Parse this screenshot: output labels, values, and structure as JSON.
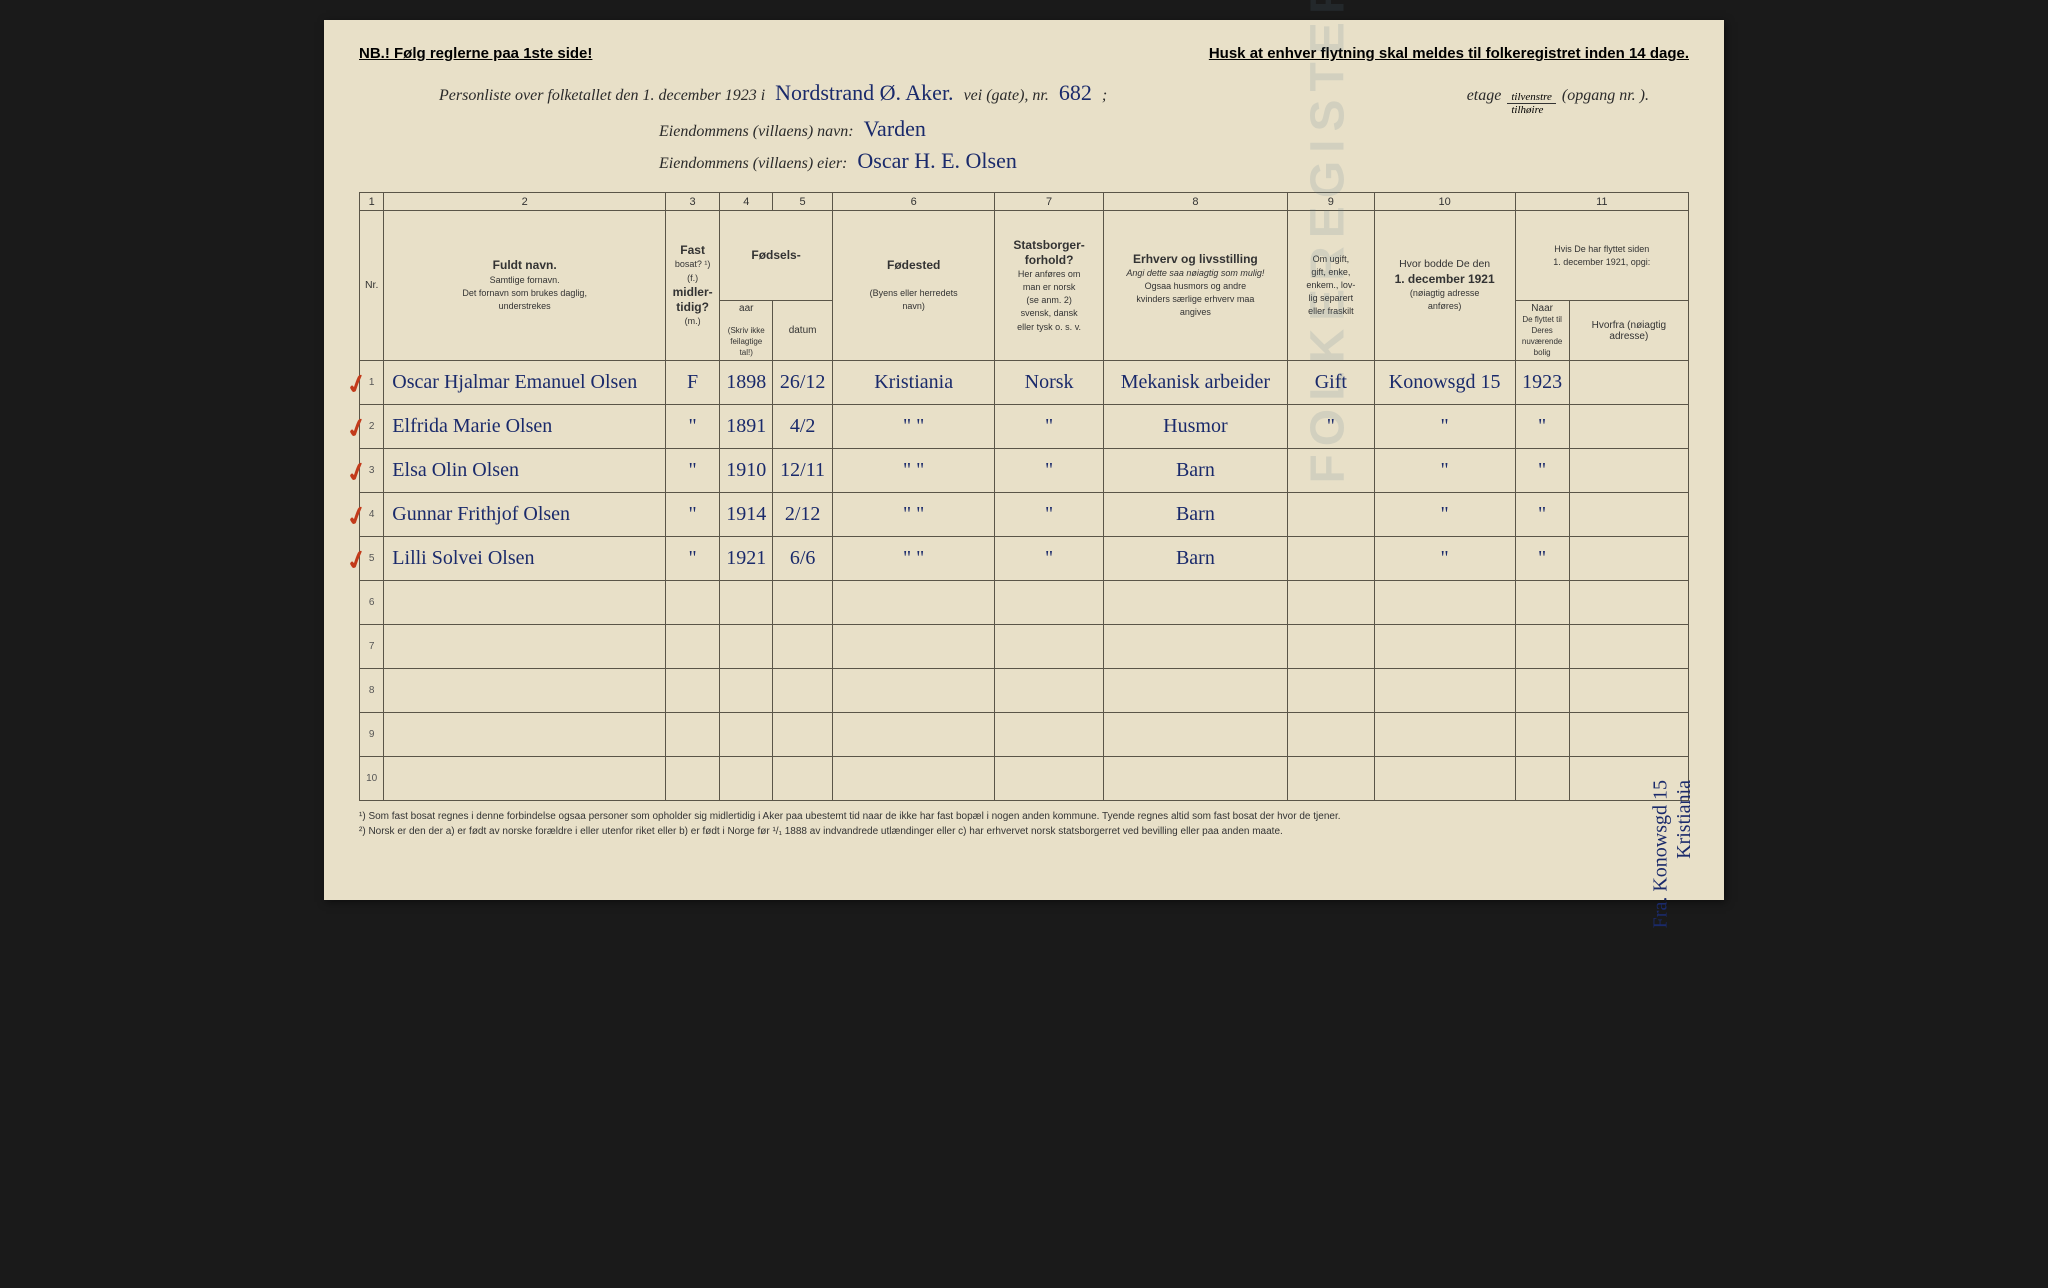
{
  "topLeft": "NB.! Følg reglerne paa 1ste side!",
  "topRight": "Husk at enhver flytning skal meldes til folkeregistret inden 14 dage.",
  "header": {
    "line1_pre": "Personliste over folketallet den 1. december 1923 i",
    "place": "Nordstrand Ø. Aker.",
    "line1_mid": "vei (gate), nr.",
    "gateNr": "682",
    "line1_sep": ";",
    "etage": "etage",
    "tilvenstre": "tilvenstre",
    "tilhoire": "tilhøire",
    "opgang": "(opgang nr.        ).",
    "line2_label": "Eiendommens (villaens) navn:",
    "villa_name": "Varden",
    "line3_label": "Eiendommens (villaens) eier:",
    "owner": "Oscar H. E. Olsen"
  },
  "colNums": [
    "1",
    "2",
    "3",
    "4",
    "5",
    "6",
    "7",
    "8",
    "9",
    "10",
    "11"
  ],
  "headers": {
    "nr": "Nr.",
    "fuldt": "Fuldt navn.",
    "fuldt_sub": "Samtlige fornavn.\nDet fornavn som brukes daglig,\nunderstrekes",
    "fast_top": "Fast",
    "fast_sub1": "bosat? ¹)",
    "fast_sub2": "(f.)",
    "fast_mid": "midler-\ntidig?",
    "fast_sub3": "(m.)",
    "fodsels": "Fødsels-",
    "aar": "aar",
    "datum": "datum",
    "skriv": "(Skriv ikke feilagtige\ntal!)",
    "fodested": "Fødested",
    "fodested_sub": "(Byens eller herredets\nnavn)",
    "stats": "Statsborger-\nforhold?",
    "stats_sub": "Her anføres om\nman er norsk\n(se anm. 2)\nsvensk, dansk\neller tysk o. s. v.",
    "erhverv": "Erhverv og livsstilling",
    "erhverv_em": "Angi dette saa nøiagtig\nsom mulig!",
    "erhverv_sub": "Ogsaa husmors og andre\nkvinders særlige erhverv maa\nangives",
    "ugift": "Om ugift,\ngift, enke,\nenkem., lov-\nlig separert\neller fraskilt",
    "bodde": "Hvor bodde De den",
    "bodde_date": "1. december 1921",
    "bodde_sub": "(nøiagtig adresse\nanføres)",
    "flyttet": "Hvis De har flyttet siden\n1. december 1921, opgi:",
    "naar": "Naar",
    "hvorfra": "Hvorfra (nøiagtig\nadresse)",
    "flyttet_sub": "De flyttet til Deres nuværende\nbolig"
  },
  "rows": [
    {
      "n": "1",
      "name": "Oscar Hjalmar Emanuel Olsen",
      "fast": "F",
      "aar": "1898",
      "datum": "26/12",
      "sted": "Kristiania",
      "stats": "Norsk",
      "erhv": "Mekanisk arbeider",
      "gift": "Gift",
      "addr": "Konowsgd 15",
      "naar": "1923",
      "hvorfra": ""
    },
    {
      "n": "2",
      "name": "Elfrida Marie        Olsen",
      "fast": "\"",
      "aar": "1891",
      "datum": "4/2",
      "sted": "\"   \"",
      "stats": "\"",
      "erhv": "Husmor",
      "gift": "\"",
      "addr": "\"",
      "naar": "\"",
      "hvorfra": ""
    },
    {
      "n": "3",
      "name": "Elsa Olin            Olsen",
      "fast": "\"",
      "aar": "1910",
      "datum": "12/11",
      "sted": "\"   \"",
      "stats": "\"",
      "erhv": "Barn",
      "gift": "",
      "addr": "\"",
      "naar": "\"",
      "hvorfra": ""
    },
    {
      "n": "4",
      "name": "Gunnar Frithjof     Olsen",
      "fast": "\"",
      "aar": "1914",
      "datum": "2/12",
      "sted": "\"   \"",
      "stats": "\"",
      "erhv": "Barn",
      "gift": "",
      "addr": "\"",
      "naar": "\"",
      "hvorfra": ""
    },
    {
      "n": "5",
      "name": "Lilli Solvei         Olsen",
      "fast": "\"",
      "aar": "1921",
      "datum": "6/6",
      "sted": "\"   \"",
      "stats": "\"",
      "erhv": "Barn",
      "gift": "",
      "addr": "\"",
      "naar": "\"",
      "hvorfra": ""
    }
  ],
  "emptyRows": [
    "6",
    "7",
    "8",
    "9",
    "10"
  ],
  "footnotes": {
    "f1": "¹) Som fast bosat regnes i denne forbindelse ogsaa personer som opholder sig midlertidig i Aker paa ubestemt tid naar de ikke har fast bopæl i nogen anden kommune. Tyende regnes altid som fast bosat der hvor de tjener.",
    "f2": "²) Norsk er den der a) er født av norske forældre i eller utenfor riket eller b) er født i Norge før ¹/₁ 1888 av indvandrede utlændinger eller c) har erhvervet norsk statsborgerret ved bevilling eller paa anden maate."
  },
  "vertNote1": "Fra. Konowsgd 15",
  "vertNote2": "Kristiania",
  "watermark": "FOLKEREGISTER",
  "colors": {
    "paper": "#e8e0c8",
    "ink_handwriting": "#1a2a6b",
    "ink_print": "#2a2a2a",
    "red_tick": "#c23a1a",
    "border": "#5a5548"
  }
}
